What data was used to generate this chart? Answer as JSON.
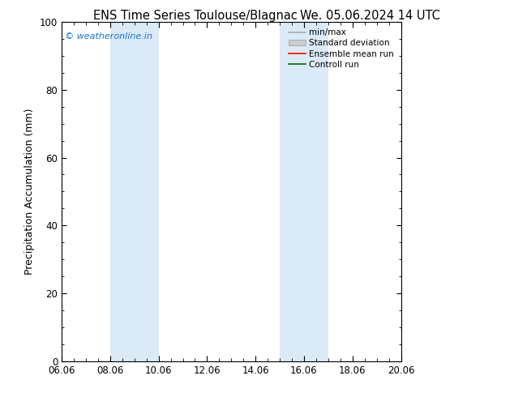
{
  "title_left": "ENS Time Series Toulouse/Blagnac",
  "title_right": "We. 05.06.2024 14 UTC",
  "ylabel": "Precipitation Accumulation (mm)",
  "ylim": [
    0,
    100
  ],
  "yticks": [
    0,
    20,
    40,
    60,
    80,
    100
  ],
  "xlim": [
    0,
    14
  ],
  "xtick_labels": [
    "06.06",
    "08.06",
    "10.06",
    "12.06",
    "14.06",
    "16.06",
    "18.06",
    "20.06"
  ],
  "xtick_positions": [
    0,
    2,
    4,
    6,
    8,
    10,
    12,
    14
  ],
  "shaded_bands": [
    {
      "x_start": 2,
      "x_end": 4
    },
    {
      "x_start": 9,
      "x_end": 11
    }
  ],
  "shade_color": "#daeaf7",
  "watermark_text": "© weatheronline.in",
  "watermark_color": "#1a75cc",
  "background_color": "#ffffff",
  "plot_bg_color": "#ffffff",
  "legend_entries": [
    {
      "label": "min/max",
      "type": "line",
      "color": "#aaaaaa",
      "linewidth": 1.2
    },
    {
      "label": "Standard deviation",
      "type": "box",
      "facecolor": "#cccccc",
      "edgecolor": "#999999"
    },
    {
      "label": "Ensemble mean run",
      "type": "line",
      "color": "#ff0000",
      "linewidth": 1.2
    },
    {
      "label": "Controll run",
      "type": "line",
      "color": "#006600",
      "linewidth": 1.2
    }
  ],
  "title_fontsize": 10.5,
  "axis_label_fontsize": 9,
  "tick_fontsize": 8.5,
  "legend_fontsize": 7.5,
  "watermark_fontsize": 8
}
